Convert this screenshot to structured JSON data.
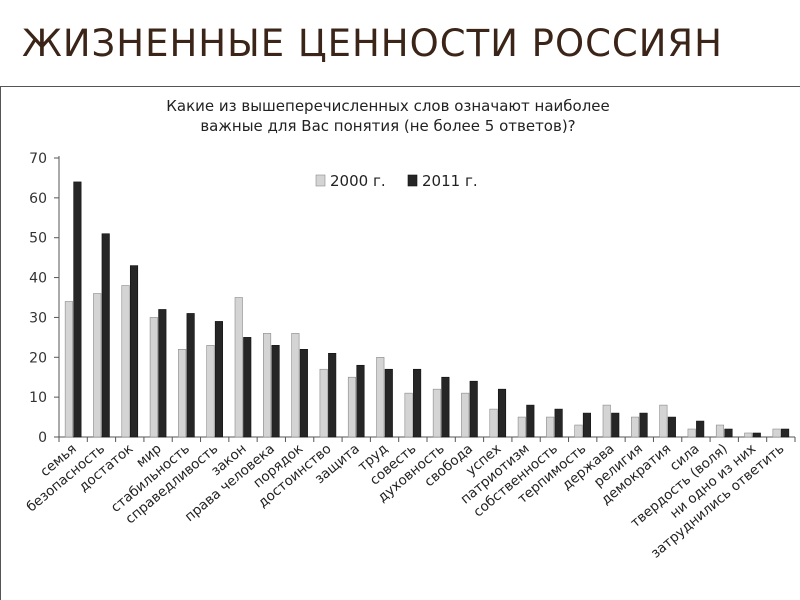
{
  "slide": {
    "title": "ЖИЗНЕННЫЕ ЦЕННОСТИ РОССИЯН"
  },
  "colors": {
    "series_2000": "#d4d4d4",
    "series_2011": "#262626",
    "title": "#3b2418"
  },
  "chart_data": {
    "type": "bar",
    "title": [
      "Какие из вышеперечисленных слов означают наиболее",
      "важные для Вас понятия (не более 5 ответов)?"
    ],
    "xlabel": "",
    "ylabel": "",
    "ylim": [
      0,
      70
    ],
    "yticks": [
      0,
      10,
      20,
      30,
      40,
      50,
      60,
      70
    ],
    "grid": false,
    "legend_position": "top",
    "categories": [
      "семья",
      "безопасность",
      "достаток",
      "мир",
      "стабильность",
      "справедливость",
      "закон",
      "права человека",
      "порядок",
      "достоинство",
      "защита",
      "труд",
      "совесть",
      "духовность",
      "свобода",
      "успех",
      "патриотизм",
      "собственность",
      "терпимость",
      "держава",
      "религия",
      "демократия",
      "сила",
      "твердость (воля)",
      "ни одно из них",
      "затруднились ответить"
    ],
    "series": [
      {
        "name": "2000 г.",
        "values": [
          34,
          36,
          38,
          30,
          22,
          23,
          35,
          26,
          26,
          17,
          15,
          20,
          11,
          12,
          11,
          7,
          5,
          5,
          3,
          8,
          5,
          8,
          2,
          3,
          1,
          2
        ]
      },
      {
        "name": "2011 г.",
        "values": [
          64,
          51,
          43,
          32,
          31,
          29,
          25,
          23,
          22,
          21,
          18,
          17,
          17,
          15,
          14,
          12,
          8,
          7,
          6,
          6,
          6,
          5,
          4,
          2,
          1,
          2
        ]
      }
    ]
  }
}
